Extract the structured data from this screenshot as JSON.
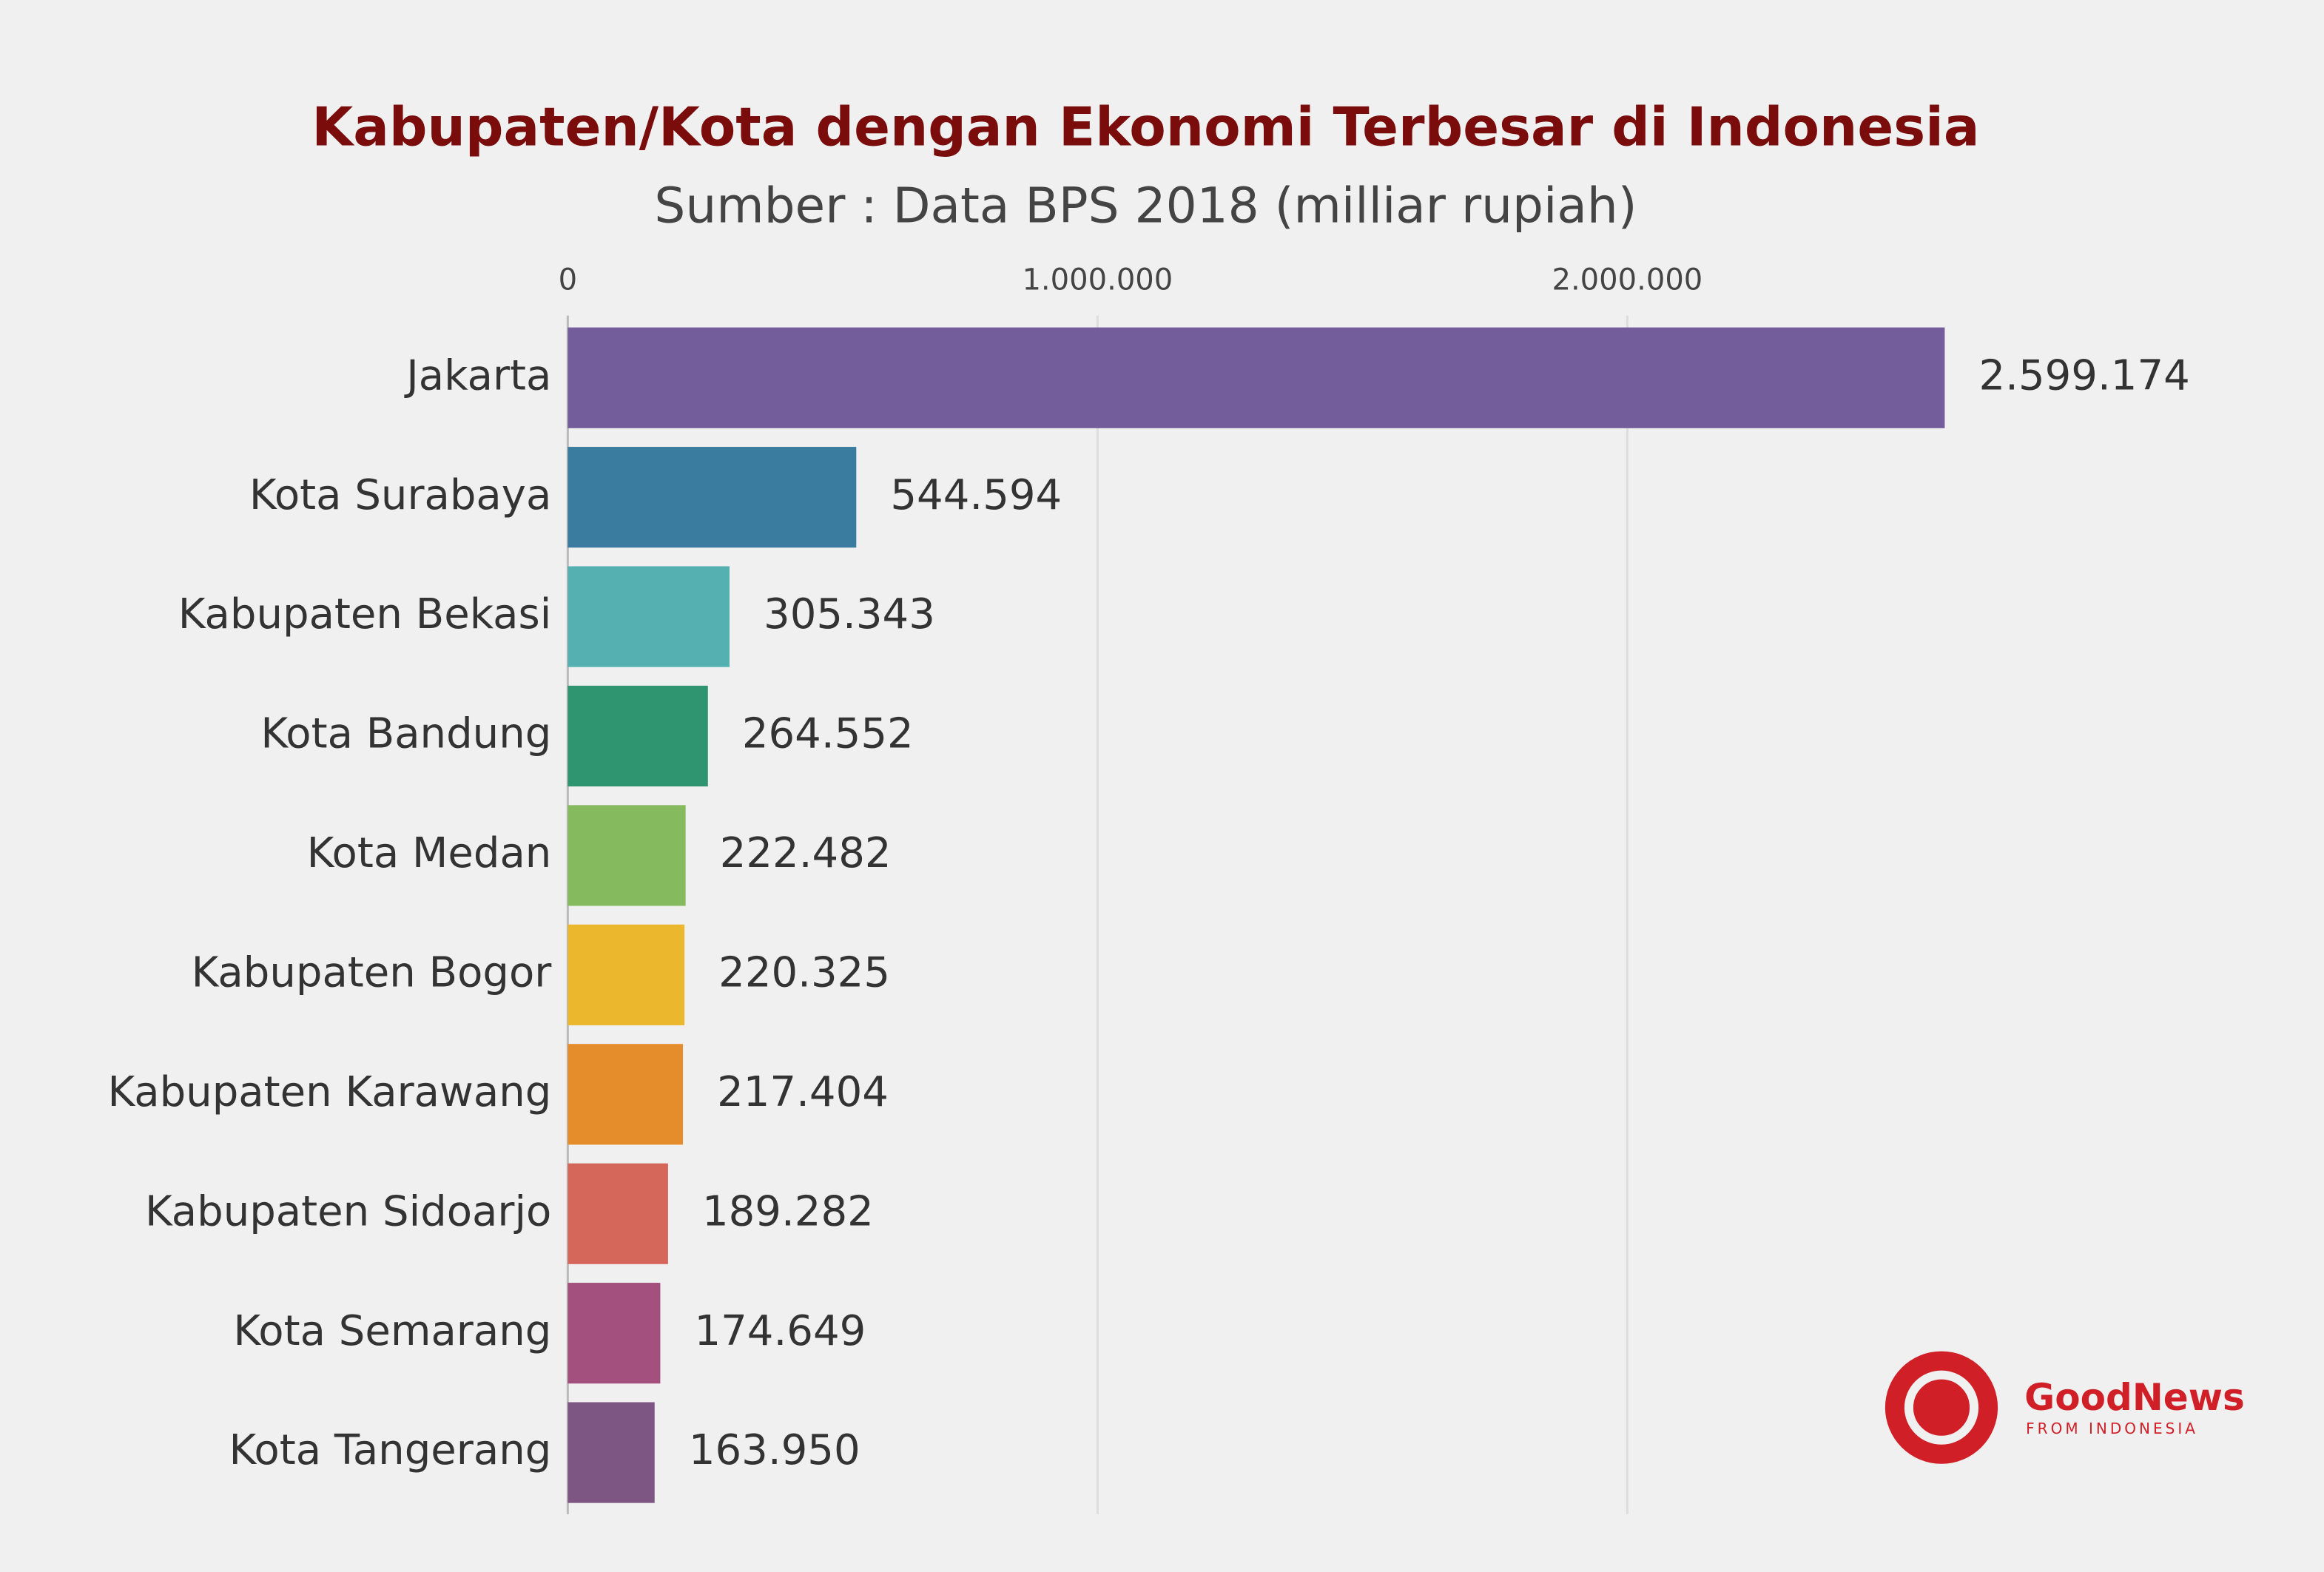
{
  "chart_data": {
    "type": "bar",
    "orientation": "horizontal",
    "title": "Kabupaten/Kota dengan Ekonomi Terbesar di Indonesia",
    "subtitle": "Sumber : Data BPS 2018 (milliar rupiah)",
    "categories": [
      "Jakarta",
      "Kota Surabaya",
      "Kabupaten Bekasi",
      "Kota Bandung",
      "Kota Medan",
      "Kabupaten Bogor",
      "Kabupaten Karawang",
      "Kabupaten Sidoarjo",
      "Kota Semarang",
      "Kota Tangerang"
    ],
    "values": [
      2599174,
      544594,
      305343,
      264552,
      222482,
      220325,
      217404,
      189282,
      174649,
      163950
    ],
    "value_labels": [
      "2.599.174",
      "544.594",
      "305.343",
      "264.552",
      "222.482",
      "220.325",
      "217.404",
      "189.282",
      "174.649",
      "163.950"
    ],
    "colors": [
      "#745d9b",
      "#3a7ba0",
      "#55b1b1",
      "#2f9470",
      "#86ba5e",
      "#ebb72d",
      "#e58d2a",
      "#d5675a",
      "#a3507f",
      "#7e5683"
    ],
    "xlim": [
      0,
      2600000
    ],
    "xticks": [
      0,
      {
        "value": 1000000,
        "label": "1.000.000"
      },
      {
        "value": 2000000,
        "label": "2.000.000"
      }
    ],
    "grid": true
  },
  "logo": {
    "name": "GoodNews",
    "tagline": "FROM INDONESIA"
  }
}
